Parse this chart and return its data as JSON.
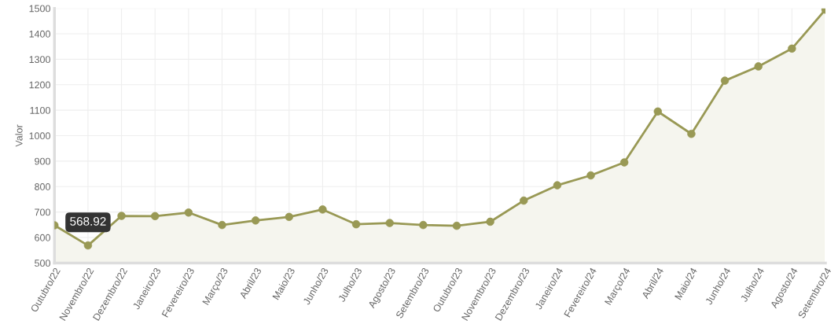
{
  "chart_data": {
    "type": "area",
    "ylabel": "Valor",
    "categories": [
      "Outubro/22",
      "Novembro/22",
      "Dezembro/22",
      "Janeiro/23",
      "Fevereiro/23",
      "Março/23",
      "Abril/23",
      "Maio/23",
      "Junho/23",
      "Julho/23",
      "Agosto/23",
      "Setembro/23",
      "Outubro/23",
      "Novembro/23",
      "Dezembro/23",
      "Janeiro/24",
      "Fevereiro/24",
      "Março/24",
      "Abril/24",
      "Maio/24",
      "Junho/24",
      "Julho/24",
      "Agosto/24",
      "Setembro/24"
    ],
    "series": [
      {
        "color": "#999955",
        "values": [
          648,
          568.92,
          685,
          684,
          698,
          649,
          667,
          681,
          710,
          652,
          657,
          649,
          646,
          662,
          745,
          805,
          844,
          895,
          1095,
          1007,
          1216,
          1272,
          1342,
          1495
        ]
      }
    ],
    "ylim": [
      500,
      1500
    ],
    "yticks": [
      500,
      600,
      700,
      800,
      900,
      1000,
      1100,
      1200,
      1300,
      1400,
      1500
    ],
    "grid": true,
    "marker": "circle",
    "line_style": "solid",
    "annotations": [
      {
        "text": "568.92",
        "x": "Novembro/22",
        "y": 568.92
      }
    ]
  }
}
